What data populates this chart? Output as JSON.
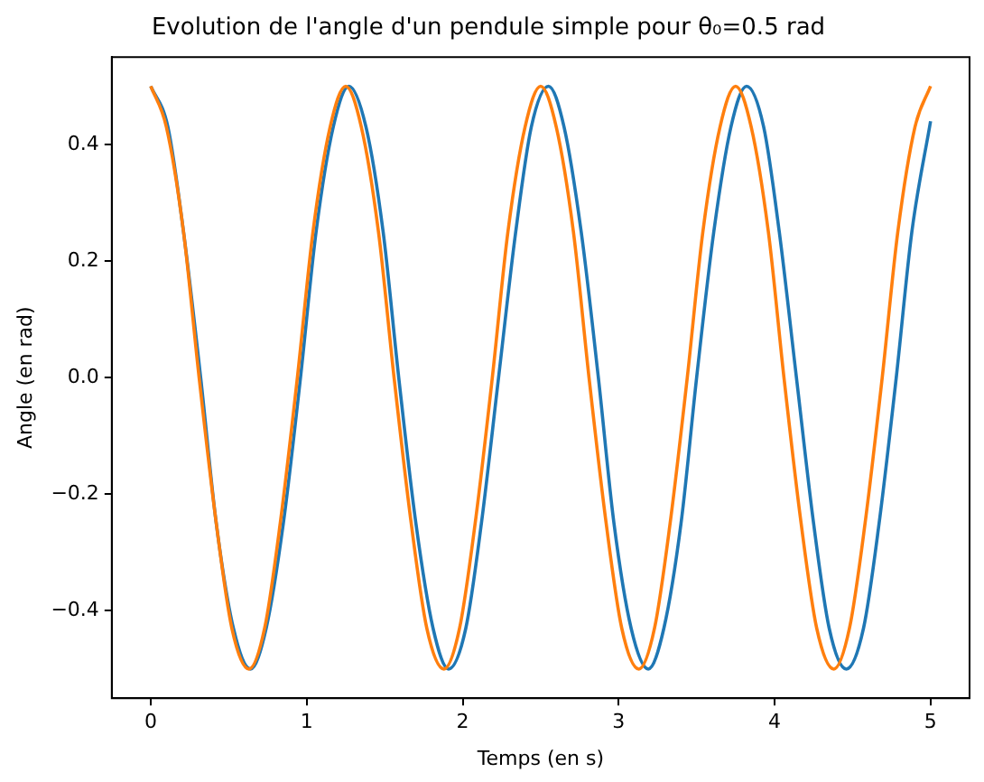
{
  "chart_data": {
    "type": "line",
    "title": "Evolution de l'angle d'un pendule simple pour θ₀=0.5 rad",
    "xlabel": "Temps (en s)",
    "ylabel": "Angle (en rad)",
    "xlim": [
      -0.25,
      5.25
    ],
    "xticks": [
      0,
      1,
      2,
      3,
      4,
      5
    ],
    "ylim": [
      -0.55,
      0.55
    ],
    "yticks": [
      -0.4,
      -0.2,
      {
        "value": 0,
        "label": "0.0"
      },
      0.2,
      0.4
    ],
    "grid": false,
    "legend": false,
    "marker": "none",
    "line_style": "solid",
    "series": [
      {
        "color": "#1f77b4",
        "x": [
          0,
          0.11,
          0.21,
          0.32,
          0.42,
          0.53,
          0.64,
          0.74,
          0.85,
          0.96,
          1.06,
          1.17,
          1.27,
          1.38,
          1.49,
          1.59,
          1.7,
          1.81,
          1.91,
          2.02,
          2.12,
          2.23,
          2.34,
          2.44,
          2.55,
          2.65,
          2.76,
          2.87,
          2.97,
          3.08,
          3.19,
          3.29,
          3.4,
          3.5,
          3.61,
          3.72,
          3.82,
          3.93,
          4.03,
          4.14,
          4.25,
          4.35,
          4.46,
          4.57,
          4.67,
          4.78,
          4.88,
          5
        ],
        "values": [
          0.5,
          0.43,
          0.25,
          0,
          -0.25,
          -0.43,
          -0.5,
          -0.43,
          -0.25,
          0,
          0.25,
          0.43,
          0.5,
          0.43,
          0.25,
          0,
          -0.25,
          -0.43,
          -0.5,
          -0.43,
          -0.25,
          0,
          0.25,
          0.43,
          0.5,
          0.43,
          0.25,
          0,
          -0.25,
          -0.43,
          -0.5,
          -0.43,
          -0.25,
          0,
          0.25,
          0.43,
          0.5,
          0.43,
          0.25,
          0,
          -0.25,
          -0.43,
          -0.5,
          -0.43,
          -0.25,
          0,
          0.25,
          0.44
        ]
      },
      {
        "color": "#ff7f0e",
        "x": [
          0,
          0.1,
          0.21,
          0.31,
          0.42,
          0.52,
          0.63,
          0.73,
          0.83,
          0.94,
          1.04,
          1.15,
          1.25,
          1.35,
          1.46,
          1.56,
          1.67,
          1.77,
          1.88,
          1.98,
          2.08,
          2.19,
          2.29,
          2.4,
          2.5,
          2.6,
          2.71,
          2.81,
          2.92,
          3.02,
          3.13,
          3.23,
          3.33,
          3.44,
          3.54,
          3.65,
          3.75,
          3.85,
          3.96,
          4.06,
          4.17,
          4.27,
          4.38,
          4.48,
          4.58,
          4.69,
          4.79,
          4.9,
          5
        ],
        "values": [
          0.5,
          0.43,
          0.25,
          0,
          -0.25,
          -0.43,
          -0.5,
          -0.43,
          -0.25,
          0,
          0.25,
          0.43,
          0.5,
          0.43,
          0.25,
          0,
          -0.25,
          -0.43,
          -0.5,
          -0.43,
          -0.25,
          0,
          0.25,
          0.43,
          0.5,
          0.43,
          0.25,
          0,
          -0.25,
          -0.43,
          -0.5,
          -0.43,
          -0.25,
          0,
          0.25,
          0.43,
          0.5,
          0.43,
          0.25,
          0,
          -0.25,
          -0.43,
          -0.5,
          -0.43,
          -0.25,
          0,
          0.25,
          0.43,
          0.5
        ]
      }
    ]
  }
}
